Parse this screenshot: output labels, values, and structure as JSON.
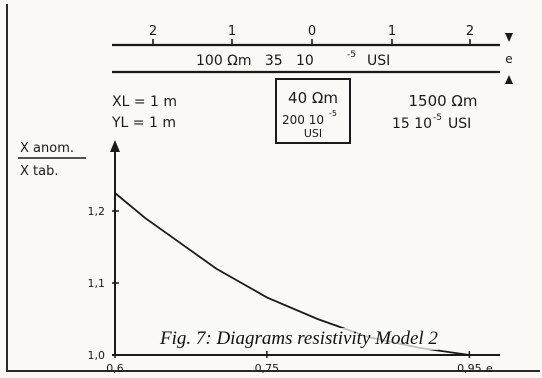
{
  "scale": {
    "ticks": [
      "2",
      "1",
      "0",
      "1",
      "2"
    ],
    "label": "100 Ωm   35   10",
    "label_exp": "-5",
    "label_unit": "USI",
    "axis_arrow_label": "e"
  },
  "params": {
    "xl": "XL = 1 m",
    "yl": "YL = 1 m",
    "box_line1": "40 Ωm",
    "box_line2": "200 10",
    "box_line2_exp": "-5",
    "box_line3": "USI",
    "right_line1": "1500 Ωm",
    "right_line2": "15 10",
    "right_line2_exp": "-5",
    "right_line2_unit": "USI"
  },
  "axis": {
    "ylabel_top": "X anom.",
    "ylabel_bottom": "X tab.",
    "xlabel": "e"
  },
  "caption": "Fig. 7: Diagrams resistivity Model 2",
  "chart_data": {
    "type": "line",
    "xlabel": "e",
    "ylabel": "X anom. / X tab.",
    "x_ticks": [
      "0,6",
      "0,75",
      "0,95"
    ],
    "y_ticks": [
      "1,0",
      "1,1",
      "1,2"
    ],
    "xlim": [
      0.6,
      1.0
    ],
    "ylim": [
      1.0,
      1.3
    ],
    "grid": false,
    "series": [
      {
        "x": [
          0.6,
          0.63,
          0.66,
          0.7,
          0.75,
          0.8,
          0.85,
          0.9,
          0.95
        ],
        "y": [
          1.225,
          1.19,
          1.16,
          1.12,
          1.08,
          1.05,
          1.025,
          1.01,
          1.0
        ]
      }
    ]
  }
}
